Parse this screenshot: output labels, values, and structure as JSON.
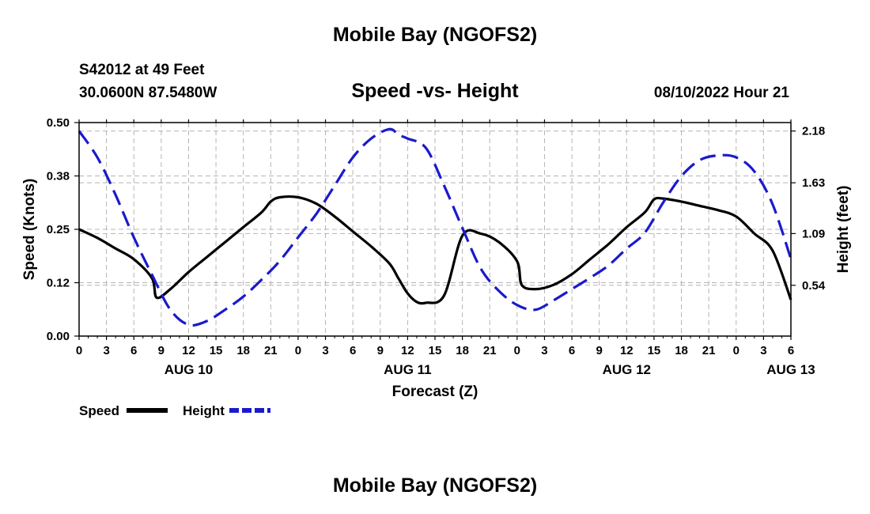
{
  "main_title": "Mobile Bay (NGOFS2)",
  "footer_title": "Mobile Bay (NGOFS2)",
  "station": "S42012 at 49 Feet",
  "coordinates": "30.0600N  87.5480W",
  "datetime": "08/10/2022 Hour 21",
  "chart_data": {
    "type": "line",
    "title": "Speed -vs- Height",
    "xlabel": "Forecast (Z)",
    "ylabel_left": "Speed (Knots)",
    "ylabel_right": "Height (feet)",
    "x_range_hours": [
      0,
      78
    ],
    "ylim_left": [
      0,
      0.5
    ],
    "ylim_right": [
      0,
      2.27
    ],
    "grid": true,
    "x_tick_labels": [
      "0",
      "3",
      "6",
      "9",
      "12",
      "15",
      "18",
      "21",
      "0",
      "3",
      "6",
      "9",
      "12",
      "15",
      "18",
      "21",
      "0",
      "3",
      "6",
      "9",
      "12",
      "15",
      "18",
      "21",
      "0",
      "3",
      "6"
    ],
    "date_labels": [
      {
        "label": "AUG 10",
        "hour": 12
      },
      {
        "label": "AUG 11",
        "hour": 36
      },
      {
        "label": "AUG 12",
        "hour": 60
      },
      {
        "label": "AUG 13",
        "hour": 78
      }
    ],
    "y_left_ticks": [
      "0.00",
      "0.12",
      "0.25",
      "0.38",
      "0.50"
    ],
    "y_left_tick_values": [
      0,
      0.125,
      0.25,
      0.375,
      0.5
    ],
    "y_right_ticks": [
      "0.54",
      "1.09",
      "1.63",
      "2.18"
    ],
    "y_right_tick_values": [
      0.54,
      1.09,
      1.63,
      2.18
    ],
    "legend": [
      {
        "name": "Speed",
        "color": "#000000",
        "style": "solid"
      },
      {
        "name": "Height",
        "color": "#1a1acc",
        "style": "dashed"
      }
    ],
    "series": [
      {
        "name": "Speed",
        "axis": "left",
        "color": "#000000",
        "x": [
          0,
          2,
          4,
          6,
          8,
          8.5,
          10,
          12,
          14,
          16,
          18,
          20,
          21,
          22,
          24,
          26,
          28,
          30,
          32,
          34,
          35,
          36,
          37,
          38,
          40,
          42,
          44,
          46,
          48,
          48.5,
          50,
          52,
          54,
          56,
          58,
          60,
          62,
          63,
          64,
          66,
          68,
          70,
          72,
          74,
          76,
          78
        ],
        "values": [
          0.25,
          0.23,
          0.205,
          0.18,
          0.135,
          0.09,
          0.11,
          0.15,
          0.185,
          0.22,
          0.255,
          0.29,
          0.315,
          0.325,
          0.325,
          0.31,
          0.28,
          0.245,
          0.21,
          0.17,
          0.135,
          0.1,
          0.08,
          0.078,
          0.095,
          0.235,
          0.24,
          0.22,
          0.175,
          0.12,
          0.11,
          0.12,
          0.145,
          0.18,
          0.215,
          0.255,
          0.29,
          0.32,
          0.322,
          0.315,
          0.305,
          0.295,
          0.28,
          0.24,
          0.2,
          0.085
        ]
      },
      {
        "name": "Height",
        "axis": "right",
        "color": "#1a1acc",
        "x": [
          0,
          2,
          4,
          6,
          8,
          10,
          12,
          14,
          16,
          18,
          20,
          22,
          24,
          26,
          28,
          30,
          32,
          34,
          35,
          36,
          38,
          40,
          42,
          44,
          46,
          48,
          50,
          52,
          54,
          56,
          58,
          60,
          62,
          64,
          66,
          68,
          70,
          72,
          74,
          76,
          78
        ],
        "values": [
          2.18,
          1.9,
          1.5,
          1.05,
          0.65,
          0.28,
          0.12,
          0.16,
          0.28,
          0.42,
          0.6,
          0.8,
          1.05,
          1.3,
          1.6,
          1.9,
          2.1,
          2.2,
          2.14,
          2.1,
          2.0,
          1.6,
          1.15,
          0.72,
          0.48,
          0.33,
          0.28,
          0.38,
          0.5,
          0.62,
          0.75,
          0.93,
          1.1,
          1.42,
          1.7,
          1.87,
          1.92,
          1.9,
          1.75,
          1.4,
          0.82
        ]
      }
    ]
  }
}
